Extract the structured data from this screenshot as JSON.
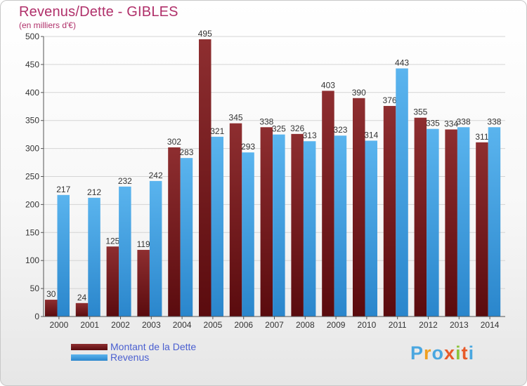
{
  "header": {
    "title": "Revenus/Dette - GIBLES",
    "subtitle": "(en milliers d'€)"
  },
  "logo": {
    "letters": [
      "P",
      "r",
      "o",
      "x",
      "i",
      "t",
      "i"
    ],
    "colors": [
      "#4aa7e0",
      "#f0a020",
      "#4aa7e0",
      "#e85a2a",
      "#8cc43c",
      "#e85a2a",
      "#4aa7e0"
    ]
  },
  "chart_data": {
    "type": "bar",
    "title": "Revenus/Dette - GIBLES",
    "subtitle": "(en milliers d'€)",
    "categories": [
      "2000",
      "2001",
      "2002",
      "2003",
      "2004",
      "2005",
      "2006",
      "2007",
      "2008",
      "2009",
      "2010",
      "2011",
      "2012",
      "2013",
      "2014"
    ],
    "series": [
      {
        "name": "Montant de la Dette",
        "color": "#7a1f22",
        "values": [
          30,
          24,
          125,
          119,
          302,
          495,
          345,
          338,
          326,
          403,
          390,
          376,
          355,
          334,
          311
        ]
      },
      {
        "name": "Revenus",
        "color": "#3b9ee0",
        "values": [
          217,
          212,
          232,
          242,
          283,
          321,
          293,
          325,
          313,
          323,
          314,
          443,
          335,
          338,
          338
        ]
      }
    ],
    "ylim": [
      0,
      500
    ],
    "yticks": [
      0,
      50,
      100,
      150,
      200,
      250,
      300,
      350,
      400,
      450,
      500
    ],
    "grid": true,
    "legend_position": "bottom-left"
  }
}
